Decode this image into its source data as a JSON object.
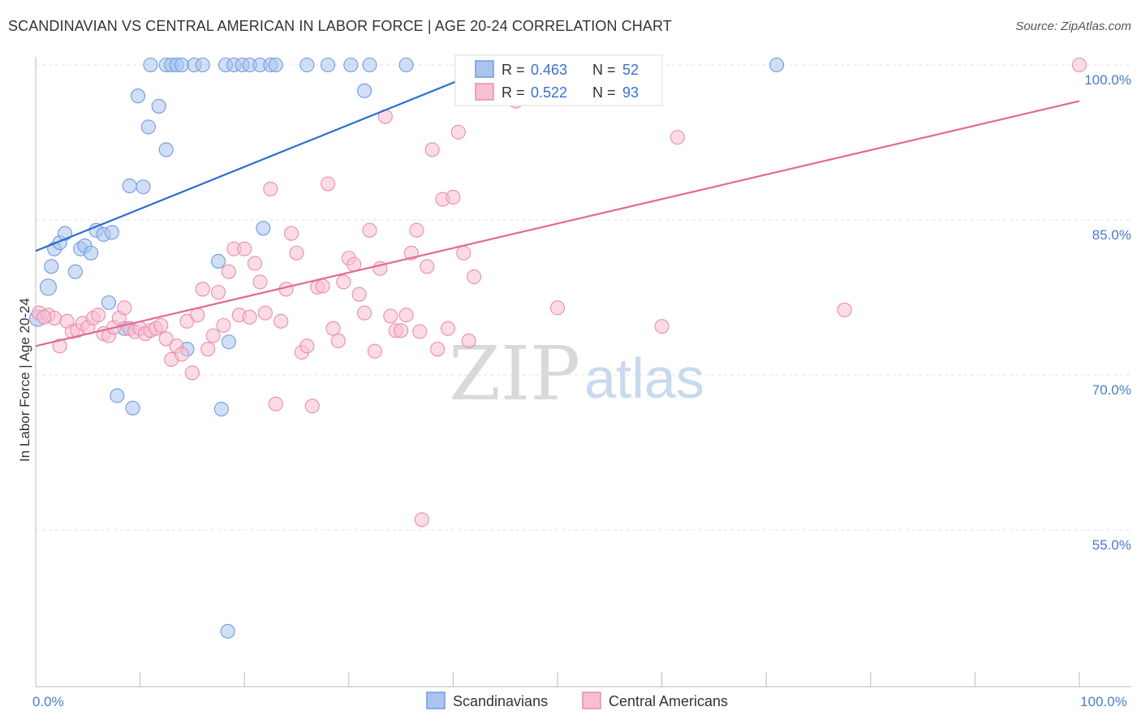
{
  "title": "SCANDINAVIAN VS CENTRAL AMERICAN IN LABOR FORCE | AGE 20-24 CORRELATION CHART",
  "source": "Source: ZipAtlas.com",
  "watermark": {
    "part1": "ZIP",
    "part2": "atlas"
  },
  "chart_data": {
    "type": "scatter",
    "xlabel": "",
    "ylabel": "In Labor Force | Age 20-24",
    "xlim": [
      0,
      100
    ],
    "ylim": [
      40,
      102
    ],
    "x_tick_labels": [
      {
        "value": 0,
        "label": "0.0%"
      },
      {
        "value": 100,
        "label": "100.0%"
      }
    ],
    "y_tick_labels": [
      {
        "value": 55,
        "label": "55.0%"
      },
      {
        "value": 70,
        "label": "70.0%"
      },
      {
        "value": 85,
        "label": "85.0%"
      },
      {
        "value": 100,
        "label": "100.0%"
      }
    ],
    "legend_top": [
      {
        "r_label": "R =",
        "r": "0.463",
        "n_label": "N =",
        "n": "52"
      },
      {
        "r_label": "R =",
        "r": "0.522",
        "n_label": "N =",
        "n": "93"
      }
    ],
    "series": [
      {
        "name": "Scandinavians",
        "color": "#6f9be0",
        "fill": "#a9c4ee",
        "line_color": "#2d6fcc",
        "trend": {
          "x0": 0,
          "y0": 82.0,
          "x1": 43,
          "y1": 99.5
        },
        "points": [
          [
            0.2,
            75.5
          ],
          [
            1.2,
            78.5
          ],
          [
            1.5,
            80.5
          ],
          [
            1.8,
            82.2
          ],
          [
            2.3,
            82.8
          ],
          [
            2.8,
            83.7
          ],
          [
            3.8,
            80.0
          ],
          [
            4.3,
            82.2
          ],
          [
            4.7,
            82.5
          ],
          [
            5.3,
            81.8
          ],
          [
            5.8,
            84.0
          ],
          [
            6.5,
            83.6
          ],
          [
            7.3,
            83.8
          ],
          [
            7.0,
            77.0
          ],
          [
            8.5,
            74.5
          ],
          [
            9.0,
            74.5
          ],
          [
            7.8,
            68.0
          ],
          [
            9.3,
            66.8
          ],
          [
            9.0,
            88.3
          ],
          [
            10.3,
            88.2
          ],
          [
            9.8,
            97.0
          ],
          [
            10.8,
            94.0
          ],
          [
            11.8,
            96.0
          ],
          [
            12.5,
            91.8
          ],
          [
            11.0,
            100.0
          ],
          [
            12.5,
            100.0
          ],
          [
            13.0,
            100.0
          ],
          [
            13.5,
            100.0
          ],
          [
            14.0,
            100.0
          ],
          [
            15.2,
            100.0
          ],
          [
            16.0,
            100.0
          ],
          [
            18.2,
            100.0
          ],
          [
            19.0,
            100.0
          ],
          [
            19.8,
            100.0
          ],
          [
            20.5,
            100.0
          ],
          [
            21.5,
            100.0
          ],
          [
            22.5,
            100.0
          ],
          [
            23.0,
            100.0
          ],
          [
            26.0,
            100.0
          ],
          [
            28.0,
            100.0
          ],
          [
            30.2,
            100.0
          ],
          [
            32.0,
            100.0
          ],
          [
            35.5,
            100.0
          ],
          [
            31.5,
            97.5
          ],
          [
            14.5,
            72.5
          ],
          [
            17.5,
            81.0
          ],
          [
            21.8,
            84.2
          ],
          [
            17.8,
            66.7
          ],
          [
            18.5,
            73.2
          ],
          [
            18.4,
            45.2
          ],
          [
            52.0,
            100.0
          ],
          [
            71.0,
            100.0
          ]
        ]
      },
      {
        "name": "Central Americans",
        "color": "#ec8cab",
        "fill": "#f7bfd2",
        "line_color": "#e06a95",
        "trend": {
          "x0": 0,
          "y0": 72.8,
          "x1": 100,
          "y1": 96.5
        },
        "points": [
          [
            0.3,
            76.0
          ],
          [
            1.2,
            75.8
          ],
          [
            1.8,
            75.5
          ],
          [
            2.3,
            72.8
          ],
          [
            3.0,
            75.2
          ],
          [
            3.5,
            74.2
          ],
          [
            4.0,
            74.3
          ],
          [
            4.5,
            75.0
          ],
          [
            5.0,
            74.6
          ],
          [
            5.5,
            75.5
          ],
          [
            6.0,
            75.8
          ],
          [
            6.5,
            74.0
          ],
          [
            7.0,
            73.8
          ],
          [
            7.5,
            74.6
          ],
          [
            8.0,
            75.5
          ],
          [
            8.5,
            76.5
          ],
          [
            9.0,
            74.5
          ],
          [
            9.5,
            74.2
          ],
          [
            10.0,
            74.5
          ],
          [
            10.5,
            74.0
          ],
          [
            11.0,
            74.3
          ],
          [
            11.5,
            74.5
          ],
          [
            12.0,
            74.8
          ],
          [
            12.5,
            73.5
          ],
          [
            13.0,
            71.5
          ],
          [
            13.5,
            72.8
          ],
          [
            14.0,
            72.0
          ],
          [
            14.5,
            75.2
          ],
          [
            15.0,
            70.2
          ],
          [
            15.5,
            75.8
          ],
          [
            16.0,
            78.3
          ],
          [
            16.5,
            72.5
          ],
          [
            17.0,
            73.8
          ],
          [
            17.5,
            78.0
          ],
          [
            18.0,
            74.8
          ],
          [
            18.5,
            80.0
          ],
          [
            19.0,
            82.2
          ],
          [
            19.5,
            75.8
          ],
          [
            20.0,
            82.2
          ],
          [
            20.5,
            75.6
          ],
          [
            21.0,
            80.8
          ],
          [
            21.5,
            79.0
          ],
          [
            22.0,
            76.0
          ],
          [
            22.5,
            88.0
          ],
          [
            23.0,
            67.2
          ],
          [
            23.5,
            75.2
          ],
          [
            24.0,
            78.3
          ],
          [
            24.5,
            83.7
          ],
          [
            25.0,
            81.8
          ],
          [
            25.5,
            72.2
          ],
          [
            26.0,
            72.8
          ],
          [
            26.5,
            67.0
          ],
          [
            27.0,
            78.5
          ],
          [
            27.5,
            78.6
          ],
          [
            28.0,
            88.5
          ],
          [
            28.5,
            74.5
          ],
          [
            29.0,
            73.3
          ],
          [
            29.5,
            79.0
          ],
          [
            30.0,
            81.3
          ],
          [
            30.5,
            80.7
          ],
          [
            31.0,
            77.8
          ],
          [
            31.5,
            76.0
          ],
          [
            32.0,
            84.0
          ],
          [
            32.5,
            72.3
          ],
          [
            33.0,
            80.3
          ],
          [
            33.5,
            95.0
          ],
          [
            34.0,
            75.7
          ],
          [
            34.5,
            74.3
          ],
          [
            35.0,
            74.3
          ],
          [
            35.5,
            75.8
          ],
          [
            36.0,
            81.8
          ],
          [
            36.5,
            84.0
          ],
          [
            37.0,
            56.0
          ],
          [
            37.5,
            80.5
          ],
          [
            38.0,
            91.8
          ],
          [
            38.5,
            72.5
          ],
          [
            39.0,
            87.0
          ],
          [
            39.5,
            74.5
          ],
          [
            40.0,
            87.2
          ],
          [
            40.5,
            93.5
          ],
          [
            41.0,
            81.8
          ],
          [
            41.5,
            73.3
          ],
          [
            42.0,
            79.5
          ],
          [
            43.0,
            97.5
          ],
          [
            46.0,
            96.5
          ],
          [
            50.0,
            76.5
          ],
          [
            56.5,
            99.8
          ],
          [
            60.0,
            74.7
          ],
          [
            61.5,
            93.0
          ],
          [
            77.5,
            76.3
          ],
          [
            100.0,
            100.0
          ],
          [
            0.8,
            75.6
          ],
          [
            36.8,
            74.2
          ]
        ]
      }
    ]
  },
  "bottom_legend": [
    {
      "label": "Scandinavians"
    },
    {
      "label": "Central Americans"
    }
  ]
}
